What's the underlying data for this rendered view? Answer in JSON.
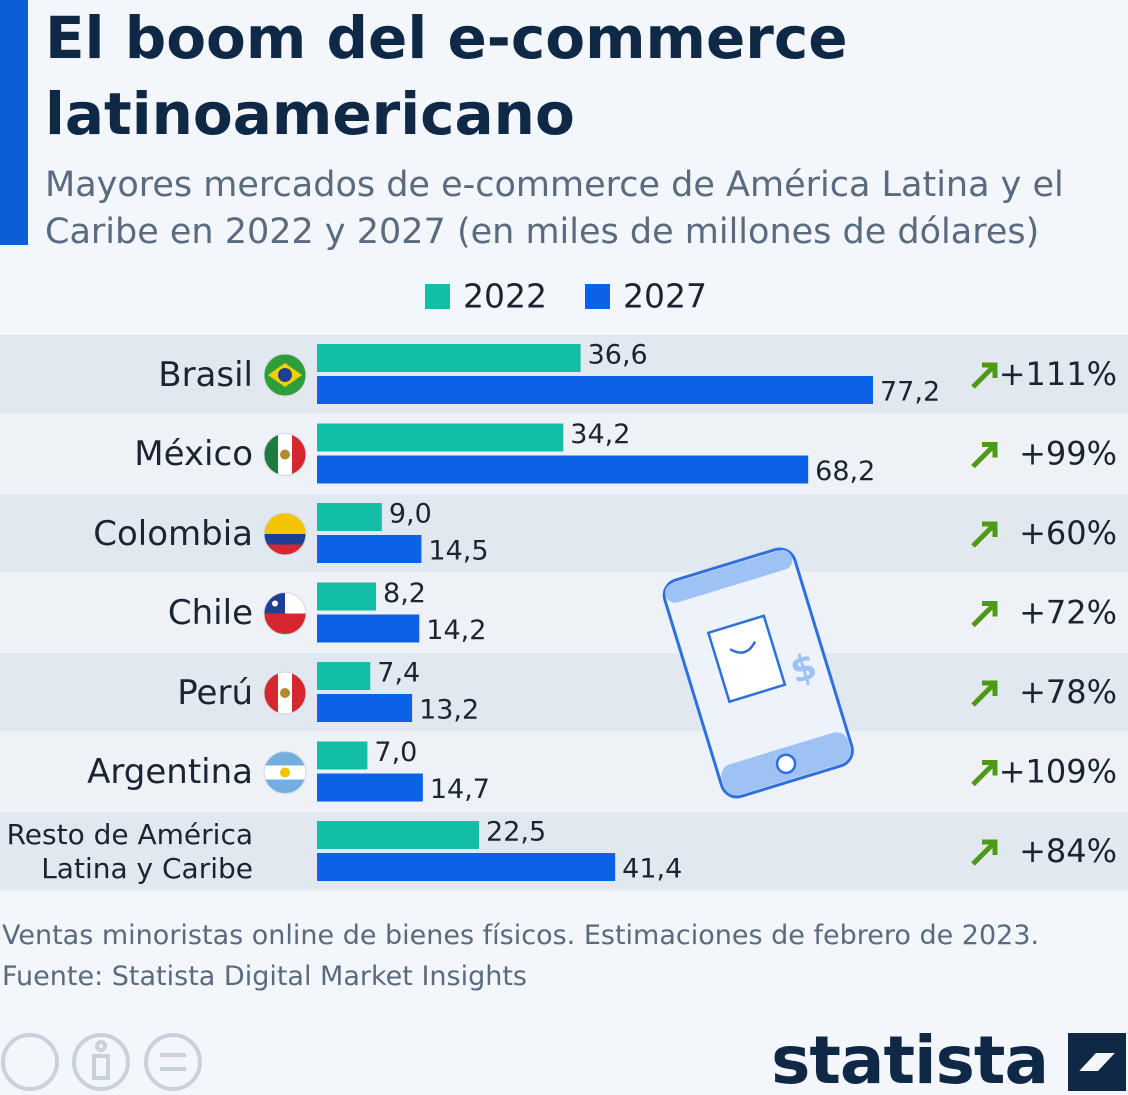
{
  "chart_data": {
    "type": "bar",
    "orientation": "horizontal",
    "title": "El boom del e-commerce latinoamericano",
    "subtitle": "Mayores mercados de e-commerce de América Latina y el Caribe en 2022 y 2027 (en miles de millones de dólares)",
    "categories": [
      "Brasil",
      "México",
      "Colombia",
      "Chile",
      "Perú",
      "Argentina",
      "Resto de América\nLatina y Caribe"
    ],
    "series": [
      {
        "name": "2022",
        "color": "#12bfa6",
        "values": [
          36.6,
          34.2,
          9.0,
          8.2,
          7.4,
          7.0,
          22.5
        ],
        "value_labels": [
          "36,6",
          "34,2",
          "9,0",
          "8,2",
          "7,4",
          "7,0",
          "22,5"
        ]
      },
      {
        "name": "2027",
        "color": "#0b62e6",
        "values": [
          77.2,
          68.2,
          14.5,
          14.2,
          13.2,
          14.7,
          41.4
        ],
        "value_labels": [
          "77,2",
          "68,2",
          "14,5",
          "14,2",
          "13,2",
          "14,7",
          "41,4"
        ]
      }
    ],
    "growth_labels": [
      "+111%",
      "+99%",
      "+60%",
      "+72%",
      "+78%",
      "+109%",
      "+84%"
    ],
    "notes": [
      "Ventas minoristas online de bienes físicos. Estimaciones de febrero de 2023.",
      "Fuente: Statista Digital Market Insights"
    ]
  },
  "brand": "statista"
}
